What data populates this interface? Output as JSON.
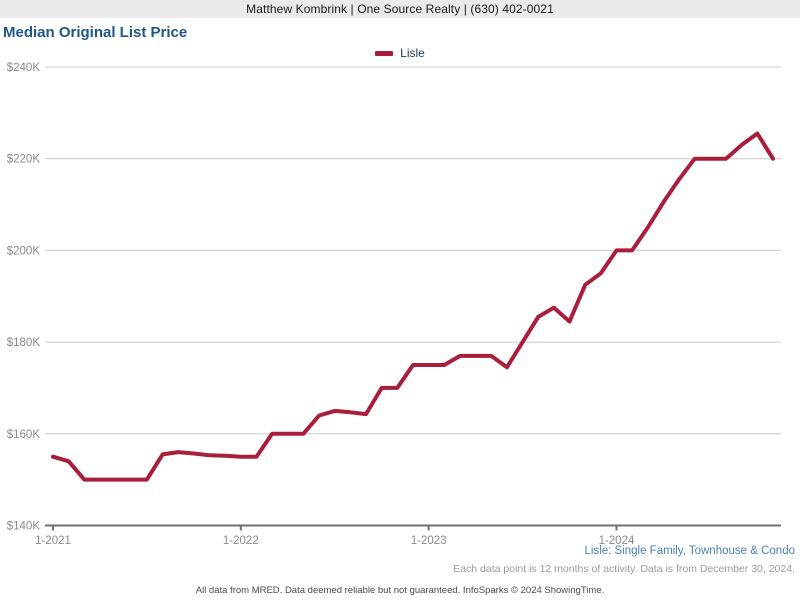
{
  "header": {
    "text": "Matthew Kombrink | One Source Realty | (630) 402-0021"
  },
  "title": {
    "text": "Median Original List Price"
  },
  "legend": {
    "series_label": "Lisle",
    "swatch_color": "#A91E3B"
  },
  "footnotes": {
    "series_scope": "Lisle: Single Family, Townhouse & Condo",
    "data_note": "Each data point is 12 months of activity. Data is from December 30, 2024.",
    "disclaimer": "All data from MRED. Data deemed reliable but not guaranteed. InfoSparks © 2024 ShowingTime."
  },
  "colors": {
    "line": "#A91E3B",
    "grid": "#CBCBCB",
    "axis": "#6F6F6F",
    "axis_text": "#8A8A8A",
    "title_blue": "#1F5788",
    "footer_blue": "#4D7EB8",
    "header_bg": "#EAEAEA"
  },
  "chart_data": {
    "type": "line",
    "title": "Median Original List Price",
    "grid": "horizontal",
    "legend_position": "top-center",
    "x_start_month": "2021-01",
    "x_end_month": "2024-11",
    "x_tick_labels": [
      "1-2021",
      "1-2022",
      "1-2023",
      "1-2024"
    ],
    "x_tick_month_indices": [
      0,
      12,
      24,
      36
    ],
    "ylim": [
      140,
      240
    ],
    "y_ticks": [
      {
        "value": 240,
        "label": "$240K"
      },
      {
        "value": 220,
        "label": "$220K"
      },
      {
        "value": 200,
        "label": "$200K"
      },
      {
        "value": 180,
        "label": "$180K"
      },
      {
        "value": 160,
        "label": "$160K"
      },
      {
        "value": 140,
        "label": "$140K"
      }
    ],
    "series": [
      {
        "name": "Lisle",
        "color": "#A91E3B",
        "unit": "USD thousands",
        "values": [
          155,
          154,
          150,
          150,
          150,
          150,
          150,
          155.5,
          156,
          155.7,
          155.3,
          155.2,
          155,
          155,
          160,
          160,
          160,
          164,
          165,
          164.7,
          164.3,
          170,
          170,
          175,
          175,
          175,
          177,
          177,
          177,
          174.5,
          180,
          185.5,
          187.5,
          184.5,
          192.5,
          195,
          200,
          200,
          205,
          210.5,
          215.5,
          220,
          220,
          220,
          223,
          225.5,
          220
        ]
      }
    ]
  }
}
